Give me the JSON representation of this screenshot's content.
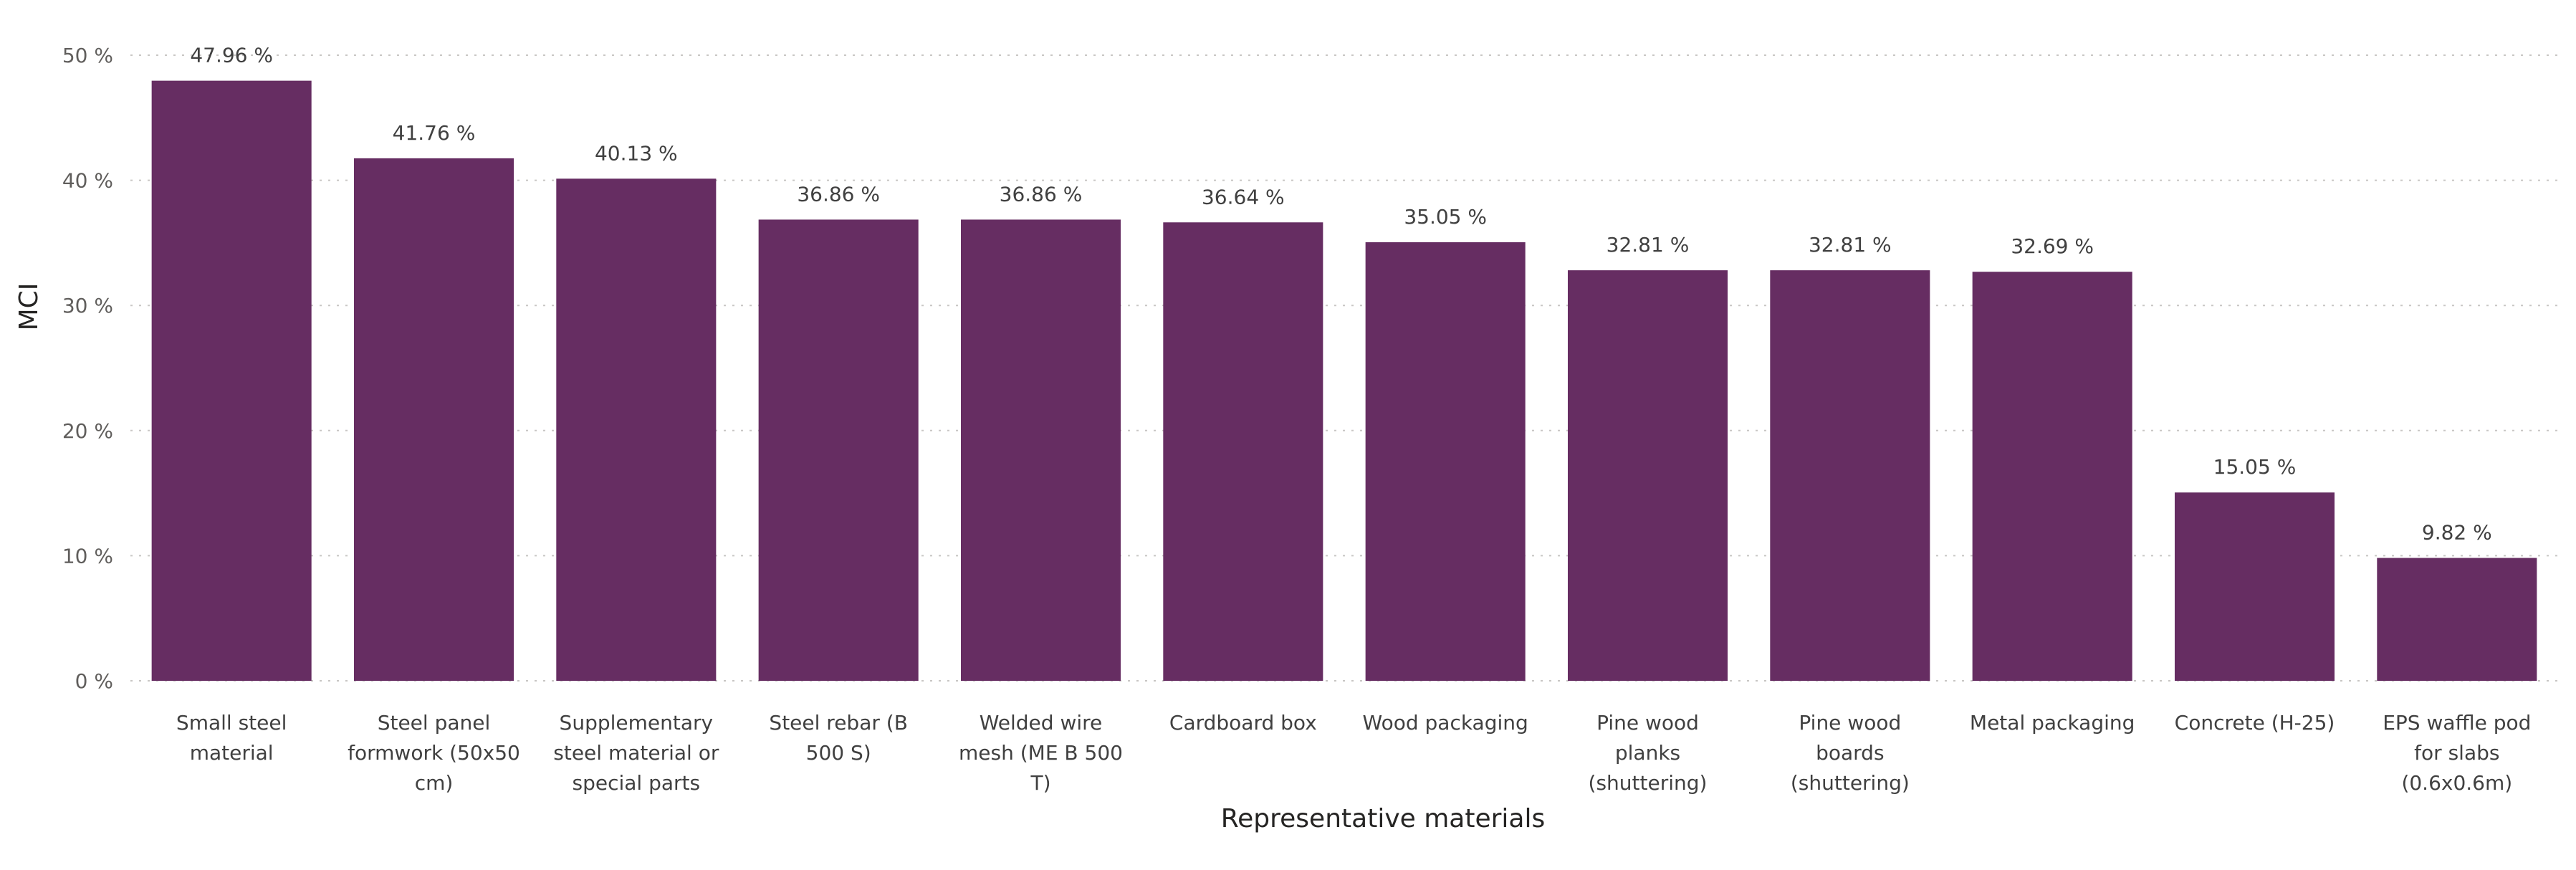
{
  "chart_data": {
    "type": "bar",
    "title": "",
    "xlabel": "Representative materials",
    "ylabel": "MCI",
    "ylim": [
      0,
      50
    ],
    "y_ticks": [
      {
        "value": 0,
        "label": "0 %"
      },
      {
        "value": 10,
        "label": "10 %"
      },
      {
        "value": 20,
        "label": "20 %"
      },
      {
        "value": 30,
        "label": "30 %"
      },
      {
        "value": 40,
        "label": "40 %"
      },
      {
        "value": 50,
        "label": "50 %"
      }
    ],
    "grid": true,
    "bar_color": "#662d62",
    "categories": [
      [
        "Small steel",
        "material"
      ],
      [
        "Steel panel",
        "formwork (50x50",
        "cm)"
      ],
      [
        "Supplementary",
        "steel material or",
        "special parts"
      ],
      [
        "Steel rebar (B",
        "500 S)"
      ],
      [
        "Welded wire",
        "mesh (ME B 500",
        "T)"
      ],
      [
        "Cardboard box"
      ],
      [
        "Wood packaging"
      ],
      [
        "Pine wood",
        "planks",
        "(shuttering)"
      ],
      [
        "Pine wood",
        "boards",
        "(shuttering)"
      ],
      [
        "Metal packaging"
      ],
      [
        "Concrete (H-25)"
      ],
      [
        "EPS waffle pod",
        "for slabs",
        "(0.6x0.6m)"
      ]
    ],
    "values": [
      47.96,
      41.76,
      40.13,
      36.86,
      36.86,
      36.64,
      35.05,
      32.81,
      32.81,
      32.69,
      15.05,
      9.82
    ],
    "data_labels": [
      "47.96 %",
      "41.76 %",
      "40.13 %",
      "36.86 %",
      "36.86 %",
      "36.64 %",
      "35.05 %",
      "32.81 %",
      "32.81 %",
      "32.69 %",
      "15.05 %",
      "9.82 %"
    ]
  }
}
